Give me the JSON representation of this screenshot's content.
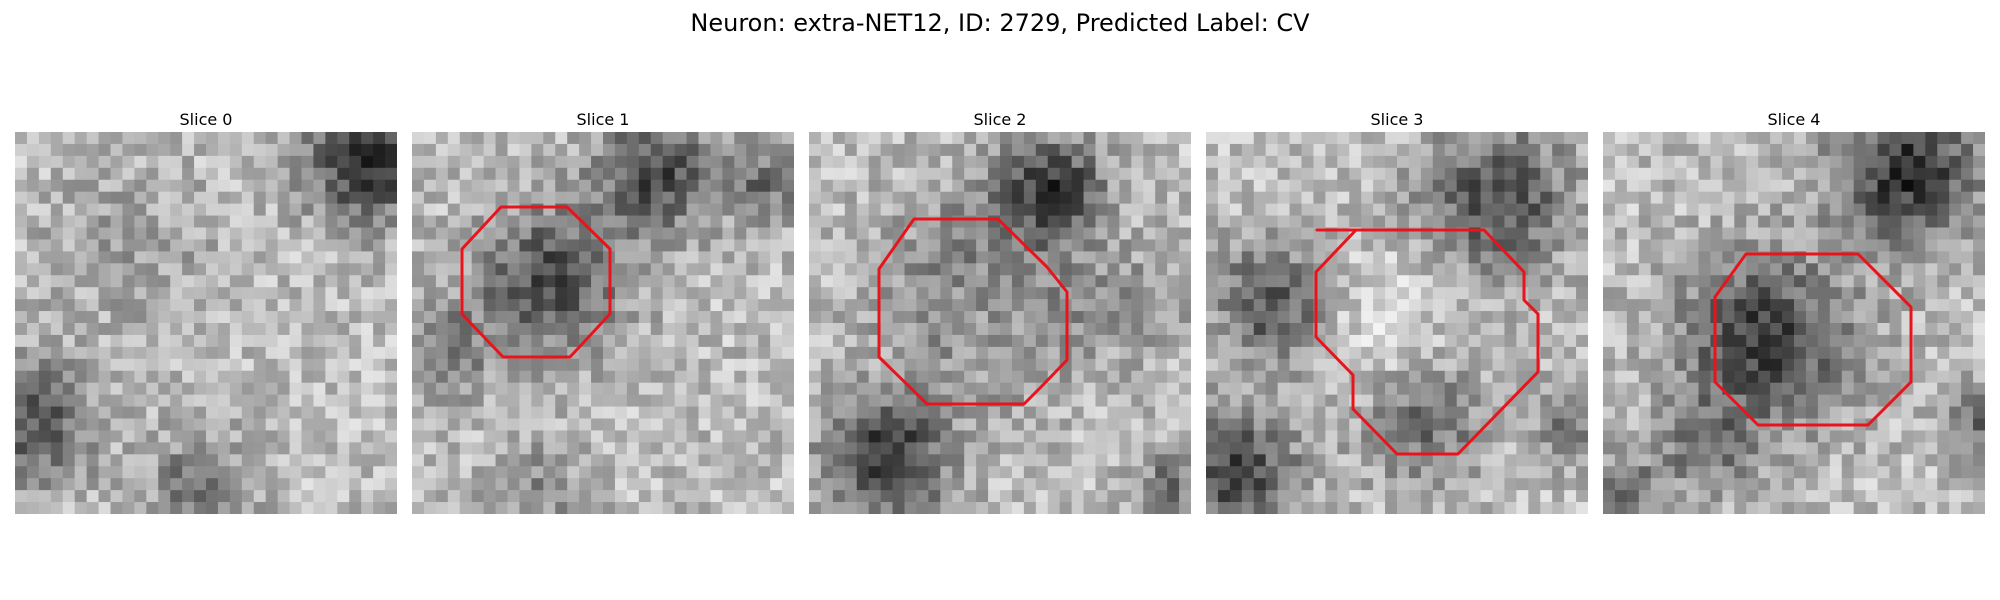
{
  "figure": {
    "title": "Neuron: extra-NET12, ID: 2729, Predicted Label: CV"
  },
  "slices": [
    {
      "title": "Slice 0",
      "has_contour": false
    },
    {
      "title": "Slice 1",
      "has_contour": true
    },
    {
      "title": "Slice 2",
      "has_contour": true
    },
    {
      "title": "Slice 3",
      "has_contour": true
    },
    {
      "title": "Slice 4",
      "has_contour": true
    }
  ],
  "colors": {
    "contour": "#e8141c",
    "background": "#ffffff"
  }
}
